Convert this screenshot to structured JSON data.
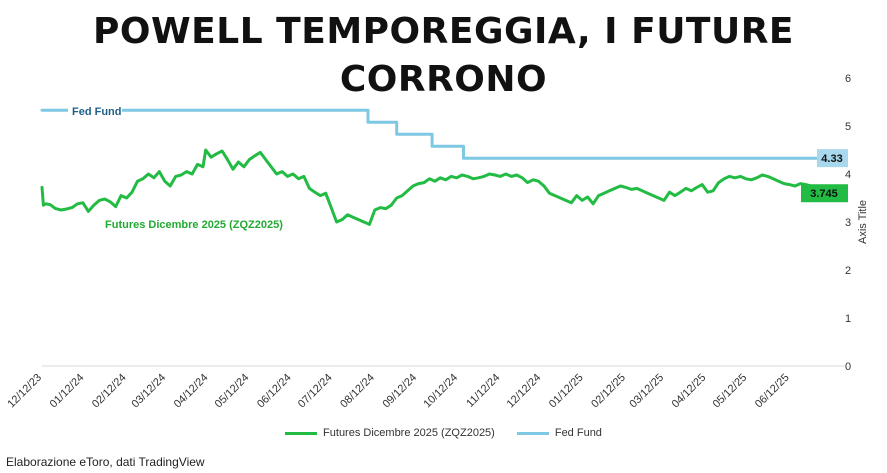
{
  "chart_data": {
    "type": "line",
    "title": "POWELL TEMPOREGGIA, I FUTURE CORRONO",
    "xlabel": "",
    "ylabel": "Axis Title",
    "ylim": [
      0,
      6
    ],
    "y_ticks": [
      "0",
      "1",
      "2",
      "3",
      "4",
      "5",
      "6"
    ],
    "y_axis_side": "right",
    "x_range_days": [
      0,
      574
    ],
    "x_ticks": [
      {
        "label": "12/12/23",
        "day": 0
      },
      {
        "label": "01/12/24",
        "day": 31
      },
      {
        "label": "02/12/24",
        "day": 62
      },
      {
        "label": "03/12/24",
        "day": 91
      },
      {
        "label": "04/12/24",
        "day": 122
      },
      {
        "label": "05/12/24",
        "day": 152
      },
      {
        "label": "06/12/24",
        "day": 183
      },
      {
        "label": "07/12/24",
        "day": 213
      },
      {
        "label": "08/12/24",
        "day": 244
      },
      {
        "label": "09/12/24",
        "day": 275
      },
      {
        "label": "10/12/24",
        "day": 305
      },
      {
        "label": "11/12/24",
        "day": 336
      },
      {
        "label": "12/12/24",
        "day": 366
      },
      {
        "label": "01/12/25",
        "day": 397
      },
      {
        "label": "02/12/25",
        "day": 428
      },
      {
        "label": "03/12/25",
        "day": 456
      },
      {
        "label": "04/12/25",
        "day": 487
      },
      {
        "label": "05/12/25",
        "day": 517
      },
      {
        "label": "06/12/25",
        "day": 548
      }
    ],
    "series": [
      {
        "name": "Futures Dicembre 2025 (ZQZ2025)",
        "color": "#22bb44",
        "label_color": "#22aa33",
        "end_value_label": "3.745",
        "x": [
          0,
          1,
          3,
          6,
          10,
          14,
          18,
          22,
          26,
          30,
          34,
          38,
          42,
          46,
          50,
          54,
          58,
          62,
          66,
          70,
          74,
          78,
          82,
          86,
          90,
          94,
          98,
          102,
          106,
          110,
          114,
          118,
          120,
          124,
          128,
          132,
          136,
          140,
          144,
          148,
          152,
          156,
          160,
          164,
          168,
          172,
          176,
          180,
          184,
          188,
          192,
          196,
          200,
          204,
          208,
          212,
          216,
          220,
          224,
          228,
          232,
          236,
          240,
          244,
          248,
          252,
          256,
          260,
          264,
          268,
          272,
          276,
          280,
          284,
          288,
          292,
          296,
          300,
          304,
          308,
          312,
          316,
          320,
          324,
          328,
          332,
          336,
          340,
          344,
          348,
          352,
          356,
          360,
          364,
          368,
          372,
          376,
          380,
          384,
          388,
          392,
          396,
          400,
          404,
          408,
          412,
          416,
          420,
          424,
          428,
          432,
          436,
          440,
          444,
          448,
          452,
          456,
          460,
          464,
          468,
          472,
          476,
          480,
          484,
          488,
          492,
          496,
          500,
          504,
          508,
          512,
          516,
          520,
          524,
          528,
          532,
          536,
          540,
          544,
          548,
          552,
          556,
          560,
          564
        ],
        "values": [
          3.72,
          3.35,
          3.38,
          3.36,
          3.28,
          3.25,
          3.27,
          3.3,
          3.38,
          3.4,
          3.22,
          3.35,
          3.45,
          3.48,
          3.42,
          3.32,
          3.55,
          3.5,
          3.62,
          3.85,
          3.9,
          4.0,
          3.92,
          4.05,
          3.85,
          3.75,
          3.95,
          3.98,
          4.05,
          4.0,
          4.2,
          4.15,
          4.5,
          4.35,
          4.42,
          4.48,
          4.3,
          4.1,
          4.25,
          4.15,
          4.3,
          4.38,
          4.45,
          4.3,
          4.15,
          4.0,
          4.05,
          3.95,
          4.0,
          3.9,
          3.95,
          3.7,
          3.62,
          3.55,
          3.6,
          3.3,
          3.0,
          3.05,
          3.15,
          3.1,
          3.05,
          3.0,
          2.95,
          3.25,
          3.3,
          3.28,
          3.35,
          3.5,
          3.55,
          3.65,
          3.75,
          3.8,
          3.82,
          3.9,
          3.85,
          3.92,
          3.88,
          3.95,
          3.92,
          3.98,
          3.95,
          3.9,
          3.92,
          3.95,
          4.0,
          3.98,
          3.95,
          4.0,
          3.95,
          3.98,
          3.92,
          3.82,
          3.88,
          3.85,
          3.75,
          3.6,
          3.55,
          3.5,
          3.45,
          3.4,
          3.55,
          3.45,
          3.52,
          3.38,
          3.55,
          3.6,
          3.65,
          3.7,
          3.75,
          3.72,
          3.68,
          3.7,
          3.65,
          3.6,
          3.55,
          3.5,
          3.45,
          3.62,
          3.55,
          3.62,
          3.7,
          3.65,
          3.72,
          3.78,
          3.62,
          3.65,
          3.82,
          3.9,
          3.95,
          3.92,
          3.95,
          3.9,
          3.88,
          3.92,
          3.98,
          3.95,
          3.9,
          3.85,
          3.8,
          3.78,
          3.75,
          3.8,
          3.78,
          3.745
        ],
        "annotation": "Futures Dicembre 2025 (ZQZ2025)"
      },
      {
        "name": "Fed Fund",
        "color": "#7ec8e3",
        "label_color": "#1f5f86",
        "end_value_label": "4.33",
        "x": [
          0,
          239,
          239,
          260,
          260,
          286,
          286,
          309,
          309,
          335,
          335,
          574
        ],
        "values": [
          5.33,
          5.33,
          5.08,
          5.08,
          4.83,
          4.83,
          4.58,
          4.58,
          4.33,
          4.33,
          4.33,
          4.33
        ],
        "annotation": "Fed Fund"
      }
    ],
    "legend": [
      "Futures Dicembre 2025 (ZQZ2025)",
      "Fed Fund"
    ],
    "legend_position": "bottom"
  },
  "footer": {
    "source": "Elaborazione eToro, dati TradingView"
  }
}
